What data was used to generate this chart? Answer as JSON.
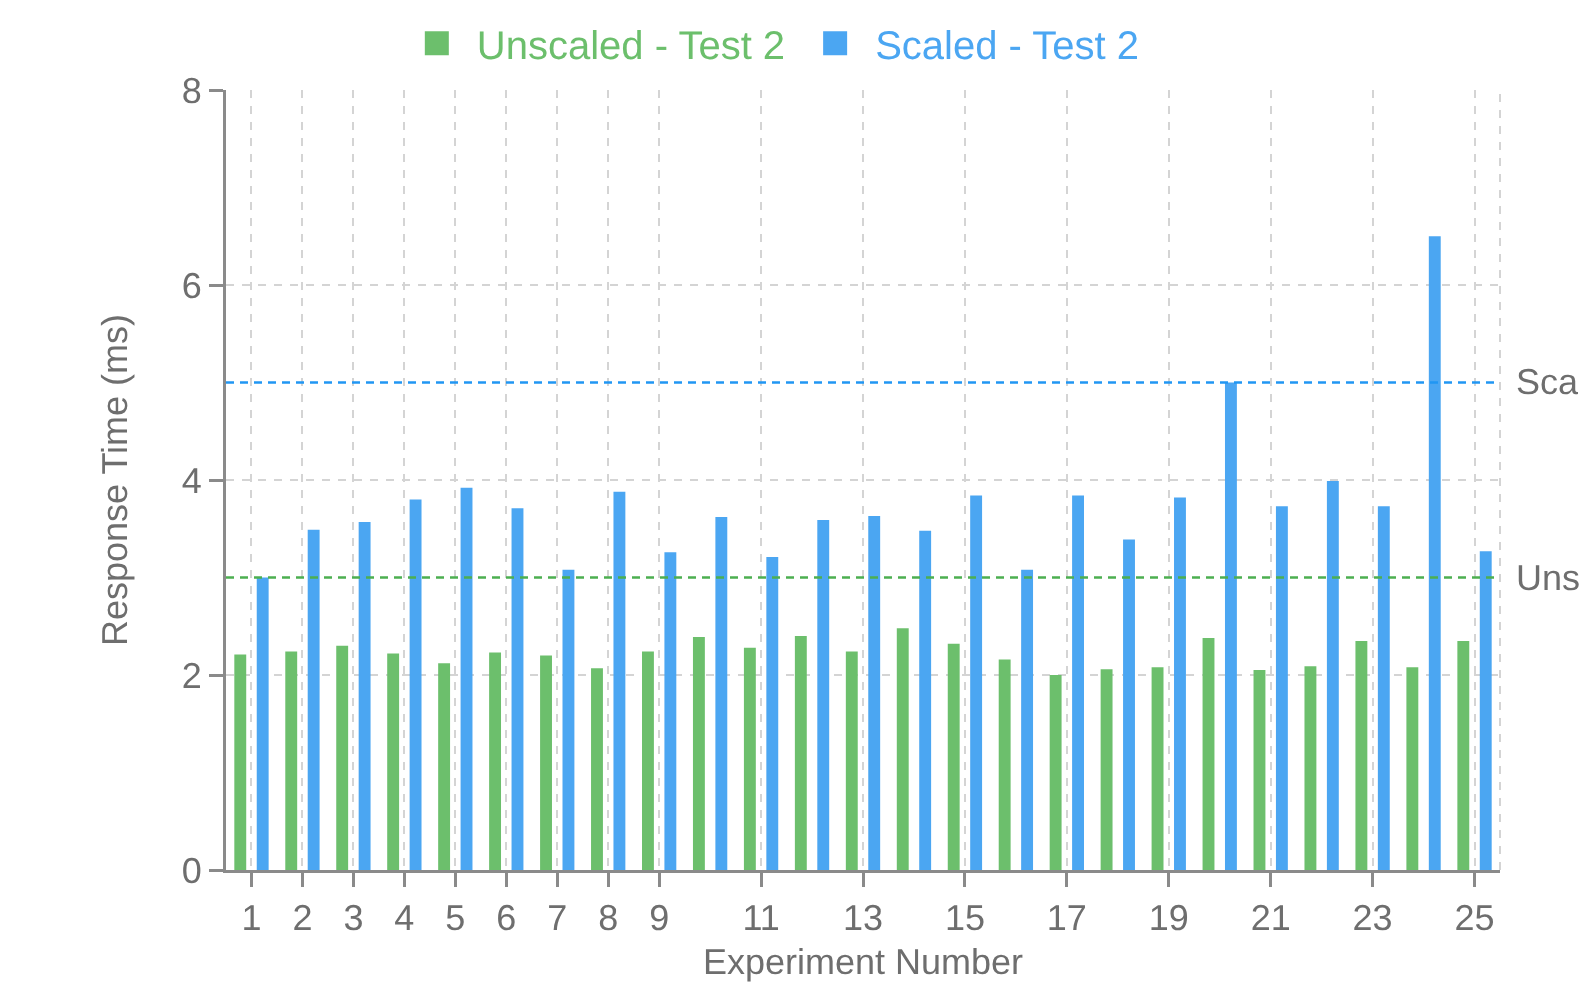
{
  "chart_data": {
    "type": "bar",
    "xlabel": "Experiment Number",
    "ylabel": "Response Time (ms)",
    "x": [
      1,
      2,
      3,
      4,
      5,
      6,
      7,
      8,
      9,
      10,
      11,
      12,
      13,
      14,
      15,
      16,
      17,
      18,
      19,
      20,
      21,
      22,
      23,
      24,
      25
    ],
    "series": [
      {
        "name": "Unscaled - Test 2",
        "color": "#6cbf6c",
        "values": [
          2.21,
          2.24,
          2.3,
          2.22,
          2.12,
          2.23,
          2.2,
          2.07,
          2.24,
          2.39,
          2.28,
          2.4,
          2.24,
          2.48,
          2.32,
          2.16,
          2.0,
          2.06,
          2.08,
          2.38,
          2.05,
          2.09,
          2.35,
          2.08,
          2.35
        ]
      },
      {
        "name": "Scaled - Test 2",
        "color": "#4ba6f2",
        "values": [
          3.0,
          3.49,
          3.57,
          3.8,
          3.92,
          3.71,
          3.08,
          3.88,
          3.26,
          3.62,
          3.21,
          3.59,
          3.63,
          3.48,
          3.84,
          3.08,
          3.84,
          3.39,
          3.82,
          5.0,
          3.73,
          3.99,
          3.73,
          6.5,
          3.27
        ]
      }
    ],
    "xlim": [
      0.5,
      25.5
    ],
    "xticks": [
      1,
      2,
      3,
      4,
      5,
      6,
      7,
      8,
      9,
      11,
      13,
      15,
      17,
      19,
      21,
      23,
      25
    ],
    "ylim": [
      0,
      8
    ],
    "yticks": [
      0,
      2,
      4,
      6,
      8
    ],
    "grid": true,
    "legend": "top",
    "ref_lines": [
      {
        "axis": "y",
        "value": 5,
        "label": "Sca",
        "color": "#2196f3",
        "line_style": "dashed"
      },
      {
        "axis": "y",
        "value": 3,
        "label": "Uns",
        "color": "#4caf50",
        "line_style": "dashed"
      }
    ]
  }
}
